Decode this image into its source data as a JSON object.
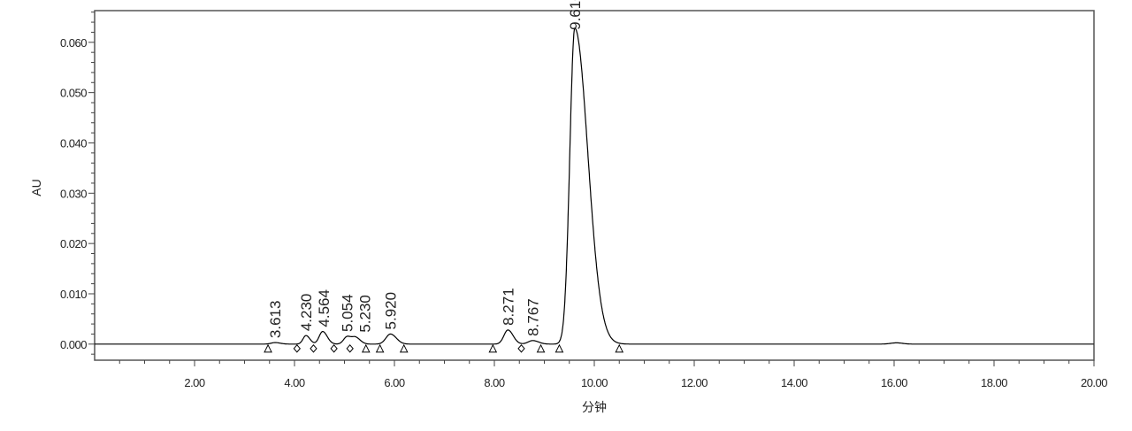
{
  "chart_data": {
    "type": "line",
    "xlabel": "分钟",
    "ylabel": "AU",
    "xlim": [
      0,
      20
    ],
    "ylim": [
      -0.0032,
      0.0663
    ],
    "x_ticks": [
      "2.00",
      "4.00",
      "6.00",
      "8.00",
      "10.00",
      "12.00",
      "14.00",
      "16.00",
      "18.00",
      "20.00"
    ],
    "y_ticks": [
      "0.000",
      "0.010",
      "0.020",
      "0.030",
      "0.040",
      "0.050",
      "0.060"
    ],
    "grid": false,
    "line_color": "#000000",
    "peaks": [
      {
        "label": "3.613",
        "rt": 3.613,
        "height": 0.0003,
        "width": 0.08
      },
      {
        "label": "4.230",
        "rt": 4.23,
        "height": 0.0017,
        "width": 0.06
      },
      {
        "label": "4.564",
        "rt": 4.564,
        "height": 0.0025,
        "width": 0.07
      },
      {
        "label": "5.054",
        "rt": 5.054,
        "height": 0.0015,
        "width": 0.07
      },
      {
        "label": "5.230",
        "rt": 5.23,
        "height": 0.0012,
        "width": 0.07
      },
      {
        "label": "5.920",
        "rt": 5.92,
        "height": 0.002,
        "width": 0.09
      },
      {
        "label": "8.271",
        "rt": 8.271,
        "height": 0.0028,
        "width": 0.08
      },
      {
        "label": "8.767",
        "rt": 8.767,
        "height": 0.0007,
        "width": 0.09
      },
      {
        "label": "9.610",
        "rt": 9.61,
        "height": 0.0628,
        "width": 0.1
      }
    ],
    "baseline_markers": [
      {
        "t": 3.47,
        "shape": "triangle"
      },
      {
        "t": 4.05,
        "shape": "diamond"
      },
      {
        "t": 4.38,
        "shape": "diamond"
      },
      {
        "t": 4.79,
        "shape": "diamond"
      },
      {
        "t": 5.11,
        "shape": "diamond"
      },
      {
        "t": 5.43,
        "shape": "triangle"
      },
      {
        "t": 5.71,
        "shape": "triangle"
      },
      {
        "t": 6.19,
        "shape": "triangle"
      },
      {
        "t": 7.97,
        "shape": "triangle"
      },
      {
        "t": 8.54,
        "shape": "diamond"
      },
      {
        "t": 8.93,
        "shape": "triangle"
      },
      {
        "t": 9.3,
        "shape": "triangle"
      },
      {
        "t": 10.5,
        "shape": "triangle"
      }
    ]
  }
}
